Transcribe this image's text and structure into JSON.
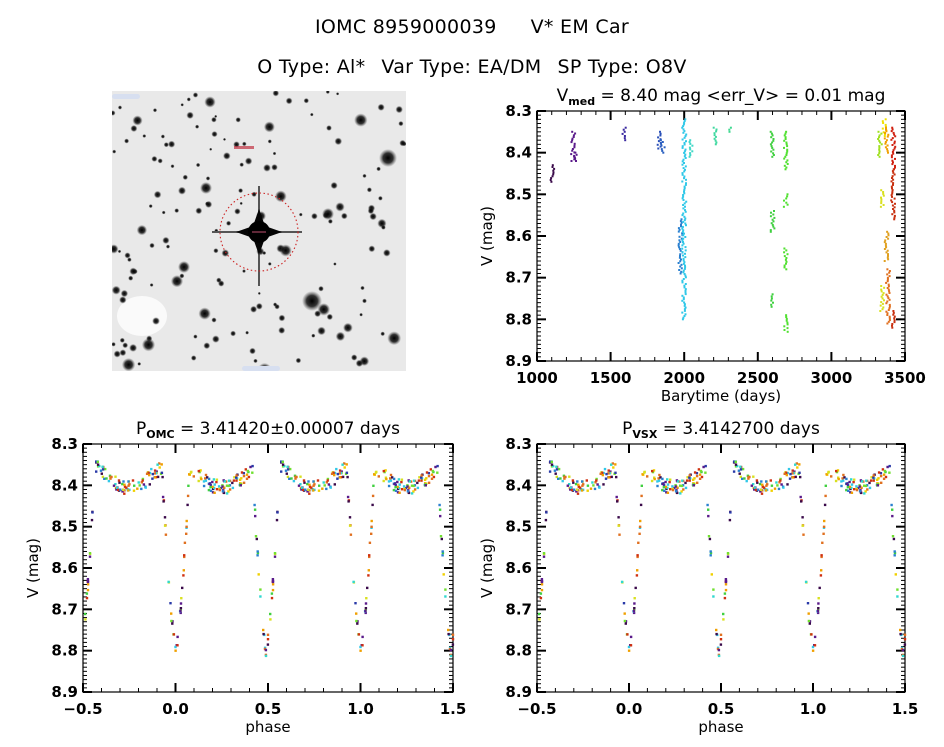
{
  "header": {
    "object_id": "IOMC 8959000039",
    "object_name": "V* EM Car",
    "o_type": "O Type: Al*",
    "var_type": "Var Type: EA/DM",
    "sp_type": "SP Type: O8V"
  },
  "finder_chart": {
    "description": "DSS finder image centred on target with dotted red circle",
    "circle_color": "#cc2222"
  },
  "chart_data": [
    {
      "id": "lightcurve",
      "type": "scatter",
      "title_main": "V",
      "title_sub": "med",
      "title_rest": " = 8.40 mag <err_V> = 0.01 mag",
      "xlabel": "Barytime (days)",
      "ylabel": "V (mag)",
      "xlim": [
        1000,
        3500
      ],
      "ylim": [
        8.3,
        8.9
      ],
      "y_inverted": true,
      "xticks": [
        1000,
        1500,
        2000,
        2500,
        3000,
        3500
      ],
      "yticks": [
        8.3,
        8.4,
        8.5,
        8.6,
        8.7,
        8.8,
        8.9
      ],
      "ytick_labels": [
        "8.3",
        "8.4",
        "8.5",
        "8.6",
        "8.7",
        "8.8",
        "8.9"
      ],
      "color_map": "time-ordered rainbow (purple → blue → cyan → green → yellow → red)",
      "groups": [
        {
          "x": 1105,
          "y_range": [
            8.43,
            8.47
          ],
          "color": "#3a0a4a"
        },
        {
          "x": 1245,
          "y_range": [
            8.35,
            8.42
          ],
          "color": "#5a1a8a"
        },
        {
          "x": 1265,
          "y_range": [
            8.4,
            8.42
          ],
          "color": "#5a1a8a"
        },
        {
          "x": 1595,
          "y_range": [
            8.34,
            8.37
          ],
          "color": "#3a2aa0"
        },
        {
          "x": 1830,
          "y_range": [
            8.35,
            8.39
          ],
          "color": "#2a50b8"
        },
        {
          "x": 1855,
          "y_range": [
            8.37,
            8.4
          ],
          "color": "#2a60c0"
        },
        {
          "x": 1975,
          "y_range": [
            8.56,
            8.69
          ],
          "color": "#2a80d0"
        },
        {
          "x": 2000,
          "y_range": [
            8.32,
            8.8
          ],
          "color": "#30c8e8"
        },
        {
          "x": 2050,
          "y_range": [
            8.37,
            8.41
          ],
          "color": "#40d8c8"
        },
        {
          "x": 2210,
          "y_range": [
            8.34,
            8.38
          ],
          "color": "#40d8a0"
        },
        {
          "x": 2320,
          "y_range": [
            8.34,
            8.35
          ],
          "color": "#40d890"
        },
        {
          "x": 2600,
          "y_range": [
            8.35,
            8.41
          ],
          "color": "#40d040"
        },
        {
          "x": 2600,
          "y_range": [
            8.54,
            8.59
          ],
          "color": "#40d040"
        },
        {
          "x": 2600,
          "y_range": [
            8.74,
            8.77
          ],
          "color": "#40d040"
        },
        {
          "x": 2690,
          "y_range": [
            8.35,
            8.44
          ],
          "color": "#50e030"
        },
        {
          "x": 2690,
          "y_range": [
            8.5,
            8.53
          ],
          "color": "#50e030"
        },
        {
          "x": 2690,
          "y_range": [
            8.63,
            8.68
          ],
          "color": "#50e030"
        },
        {
          "x": 2690,
          "y_range": [
            8.79,
            8.83
          ],
          "color": "#50e030"
        },
        {
          "x": 3330,
          "y_range": [
            8.35,
            8.41
          ],
          "color": "#a0e020"
        },
        {
          "x": 3345,
          "y_range": [
            8.49,
            8.53
          ],
          "color": "#d8e020"
        },
        {
          "x": 3345,
          "y_range": [
            8.72,
            8.78
          ],
          "color": "#d8e020"
        },
        {
          "x": 3360,
          "y_range": [
            8.32,
            8.36
          ],
          "color": "#f0e000"
        },
        {
          "x": 3375,
          "y_range": [
            8.34,
            8.4
          ],
          "color": "#f0a000"
        },
        {
          "x": 3375,
          "y_range": [
            8.59,
            8.66
          ],
          "color": "#e0a020"
        },
        {
          "x": 3385,
          "y_range": [
            8.68,
            8.81
          ],
          "color": "#e07020"
        },
        {
          "x": 3420,
          "y_range": [
            8.34,
            8.44
          ],
          "color": "#d02010"
        },
        {
          "x": 3420,
          "y_range": [
            8.44,
            8.56
          ],
          "color": "#c83010"
        },
        {
          "x": 3420,
          "y_range": [
            8.78,
            8.82
          ],
          "color": "#c83010"
        }
      ]
    },
    {
      "id": "phase_omc",
      "type": "scatter",
      "title_main": "P",
      "title_sub": "OMC",
      "title_rest": " = 3.41420±0.00007 days",
      "xlabel": "phase",
      "ylabel": "V (mag)",
      "xlim": [
        -0.5,
        1.5
      ],
      "ylim": [
        8.3,
        8.9
      ],
      "y_inverted": true,
      "xticks": [
        -0.5,
        0.0,
        0.5,
        1.0,
        1.5
      ],
      "xtick_labels": [
        "−0.5",
        "0.0",
        "0.5",
        "1.0",
        "1.5"
      ],
      "yticks": [
        8.3,
        8.4,
        8.5,
        8.6,
        8.7,
        8.8,
        8.9
      ],
      "ytick_labels": [
        "8.3",
        "8.4",
        "8.5",
        "8.6",
        "8.7",
        "8.8",
        "8.9"
      ],
      "light_curve_shape": {
        "max_mag": 8.37,
        "primary_eclipse": {
          "phase": 0.0,
          "depth_mag": 8.83
        },
        "secondary_eclipse": {
          "phase": 0.49,
          "depth_mag": 8.83
        },
        "note": "Phased data repeated over two cycles"
      }
    },
    {
      "id": "phase_vsx",
      "type": "scatter",
      "title_main": "P",
      "title_sub": "VSX",
      "title_rest": " = 3.4142700 days",
      "xlabel": "phase",
      "ylabel": "V (mag)",
      "xlim": [
        -0.5,
        1.5
      ],
      "ylim": [
        8.3,
        8.9
      ],
      "y_inverted": true,
      "xticks": [
        -0.5,
        0.0,
        0.5,
        1.0,
        1.5
      ],
      "xtick_labels": [
        "−0.5",
        "0.0",
        "0.5",
        "1.0",
        "1.5"
      ],
      "yticks": [
        8.3,
        8.4,
        8.5,
        8.6,
        8.7,
        8.8,
        8.9
      ],
      "ytick_labels": [
        "8.3",
        "8.4",
        "8.5",
        "8.6",
        "8.7",
        "8.8",
        "8.9"
      ],
      "light_curve_shape": {
        "max_mag": 8.37,
        "primary_eclipse": {
          "phase": 0.0,
          "depth_mag": 8.83
        },
        "secondary_eclipse": {
          "phase": 0.49,
          "depth_mag": 8.83
        },
        "note": "Phased data repeated over two cycles"
      }
    }
  ]
}
